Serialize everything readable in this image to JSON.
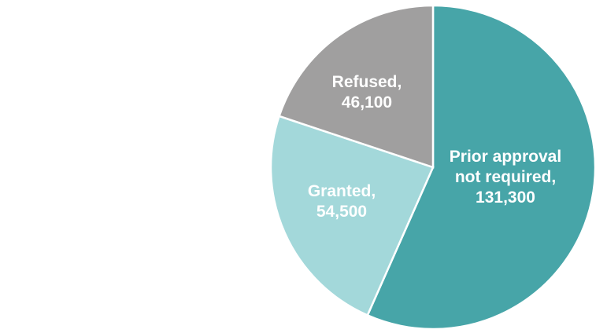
{
  "chart_data": {
    "type": "pie",
    "categories": [
      "Prior approval not required,",
      "Granted,",
      "Refused,"
    ],
    "values": [
      131300,
      54500,
      46100
    ],
    "value_labels": [
      "131,300",
      "54,500",
      "46,100"
    ],
    "colors": [
      "#47a5a8",
      "#a3d8da",
      "#a09f9f"
    ]
  }
}
